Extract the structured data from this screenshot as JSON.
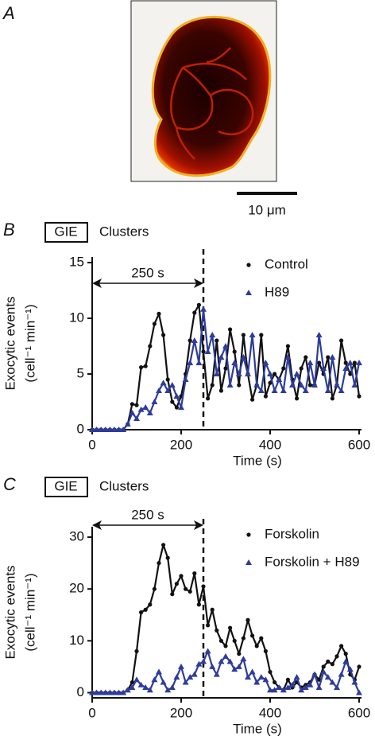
{
  "image_panel": {
    "panel_label": "A",
    "scale_bar_label": "10 μm"
  },
  "chart_data": [
    {
      "type": "line",
      "panel_label": "B",
      "tag": "GIE",
      "title": "Clusters",
      "x_label": "Time (s)",
      "y_label": [
        "Exocytic events",
        "(cell⁻¹ min⁻¹)"
      ],
      "xlim": [
        0,
        600
      ],
      "xticks": [
        0,
        200,
        400,
        600
      ],
      "ylim": [
        0,
        15.5
      ],
      "yticks": [
        0,
        5,
        10,
        15
      ],
      "legend": "upper right",
      "vline": 250,
      "annotation": {
        "text": "250 s",
        "from": 0,
        "to": 250
      },
      "x": [
        0,
        10,
        20,
        30,
        40,
        50,
        60,
        70,
        80,
        90,
        100,
        110,
        120,
        130,
        140,
        150,
        160,
        170,
        180,
        190,
        200,
        210,
        220,
        230,
        240,
        250,
        260,
        270,
        280,
        290,
        300,
        310,
        320,
        330,
        340,
        350,
        360,
        370,
        380,
        390,
        400,
        410,
        420,
        430,
        440,
        450,
        460,
        470,
        480,
        490,
        500,
        510,
        520,
        530,
        540,
        550,
        560,
        570,
        580,
        590,
        600
      ],
      "series": [
        {
          "name": "Control",
          "color": "#111111",
          "marker": "circle",
          "values": [
            0,
            0,
            0,
            0,
            0,
            0,
            0,
            0,
            0.5,
            2.3,
            2.2,
            5.6,
            5.7,
            7.5,
            9.5,
            10.4,
            8.5,
            4.5,
            2.5,
            2.0,
            3.0,
            5.0,
            8.0,
            10.5,
            11.2,
            7.0,
            2.8,
            4.0,
            8.0,
            3.5,
            5.5,
            9.0,
            7.0,
            4.0,
            8.5,
            5.0,
            2.7,
            4.0,
            8.5,
            3.0,
            4.2,
            5.0,
            4.5,
            5.5,
            7.5,
            4.5,
            2.8,
            5.5,
            6.5,
            4.0,
            4.0,
            6.0,
            5.0,
            6.5,
            2.8,
            4.0,
            8.0,
            6.0,
            5.0,
            6.0,
            3.0
          ]
        },
        {
          "name": "H89",
          "color": "#2e3c9c",
          "marker": "triangle",
          "values": [
            0,
            0,
            0,
            0,
            0,
            0,
            0,
            0,
            0.5,
            1.5,
            1.0,
            1.8,
            2.0,
            1.5,
            2.5,
            3.5,
            4.2,
            3.5,
            4.0,
            3.0,
            2.0,
            4.5,
            6.0,
            8.0,
            6.0,
            10.8,
            7.0,
            8.5,
            5.0,
            6.5,
            7.5,
            4.0,
            6.0,
            5.0,
            6.5,
            5.0,
            8.5,
            4.0,
            3.5,
            6.0,
            5.0,
            3.5,
            4.5,
            3.5,
            6.5,
            4.0,
            5.0,
            4.0,
            3.5,
            6.0,
            4.0,
            8.5,
            5.5,
            3.5,
            6.5,
            4.0,
            3.5,
            5.5,
            6.0,
            4.0,
            6.0
          ]
        }
      ]
    },
    {
      "type": "line",
      "panel_label": "C",
      "tag": "GIE",
      "title": "Clusters",
      "x_label": "Time (s)",
      "y_label": [
        "Exocytic events",
        "(cell⁻¹ min⁻¹)"
      ],
      "xlim": [
        0,
        600
      ],
      "xticks": [
        0,
        200,
        400,
        600
      ],
      "ylim": [
        -1,
        32
      ],
      "yticks": [
        0,
        10,
        20,
        30
      ],
      "legend": "upper right",
      "vline": 250,
      "annotation": {
        "text": "250 s",
        "from": 0,
        "to": 250
      },
      "x": [
        0,
        10,
        20,
        30,
        40,
        50,
        60,
        70,
        80,
        90,
        100,
        110,
        120,
        130,
        140,
        150,
        160,
        170,
        180,
        190,
        200,
        210,
        220,
        230,
        240,
        250,
        260,
        270,
        280,
        290,
        300,
        310,
        320,
        330,
        340,
        350,
        360,
        370,
        380,
        390,
        400,
        410,
        420,
        430,
        440,
        450,
        460,
        470,
        480,
        490,
        500,
        510,
        520,
        530,
        540,
        550,
        560,
        570,
        580,
        590,
        600
      ],
      "series": [
        {
          "name": "Forskolin",
          "color": "#111111",
          "marker": "circle",
          "values": [
            0,
            0,
            0,
            0,
            0,
            0,
            0,
            0,
            0.5,
            2,
            8,
            15.5,
            16,
            17,
            20,
            25,
            28.5,
            26,
            19,
            21,
            22.5,
            20,
            19.5,
            23,
            17,
            20.5,
            13,
            16,
            12,
            10,
            9,
            12.5,
            10,
            7.5,
            10.5,
            14,
            11,
            9,
            10.5,
            8,
            4,
            2,
            1,
            0.5,
            2.5,
            1,
            2,
            1,
            1.5,
            2,
            3.5,
            2.5,
            5,
            6,
            5.5,
            7,
            9,
            7.5,
            3.5,
            2.5,
            5
          ]
        },
        {
          "name": "Forskolin + H89",
          "color": "#2e3c9c",
          "marker": "triangle",
          "values": [
            0,
            0,
            0,
            0,
            0,
            0,
            0,
            0,
            0.5,
            1,
            2.5,
            1.5,
            1,
            0.5,
            2.5,
            4,
            2,
            0.5,
            1,
            3,
            5,
            2,
            3,
            3.5,
            5.5,
            6,
            8,
            5,
            3.5,
            6,
            7,
            6,
            4.5,
            5,
            6.5,
            3,
            4,
            2,
            3,
            2.5,
            0.5,
            0.5,
            1,
            0.5,
            1,
            1.5,
            3,
            0.5,
            1,
            1.5,
            3.5,
            1,
            4,
            3,
            2,
            1,
            3.5,
            6,
            4.5,
            2,
            0
          ]
        }
      ]
    }
  ]
}
